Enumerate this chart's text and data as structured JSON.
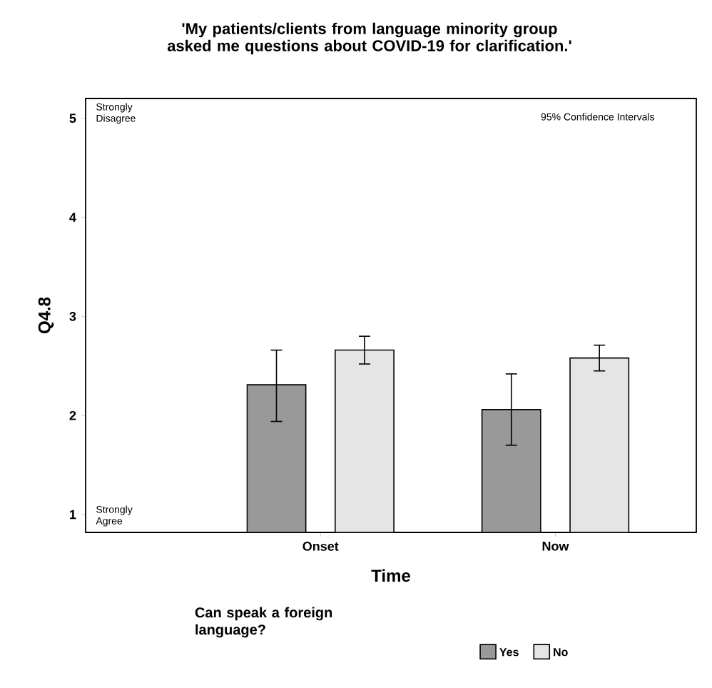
{
  "chart_data": {
    "type": "bar",
    "title": "'My patients/clients from language minority group asked me questions about COVID-19 for clarification.'",
    "xlabel": "Time",
    "ylabel": "Q4.8",
    "legend_title": "Can speak a foreign language?",
    "categories": [
      "Onset",
      "Now"
    ],
    "series": [
      {
        "name": "Yes",
        "color": "#999999",
        "values": [
          2.31,
          2.06
        ],
        "errors": [
          [
            1.94,
            2.66
          ],
          [
            1.7,
            2.42
          ]
        ]
      },
      {
        "name": "No",
        "color": "#e5e5e5",
        "values": [
          2.66,
          2.58
        ],
        "errors": [
          [
            2.52,
            2.8
          ],
          [
            2.45,
            2.71
          ]
        ]
      }
    ],
    "ylim": [
      0.82,
      5.2
    ],
    "yticks": [
      1,
      2,
      3,
      4,
      5
    ],
    "grid": false,
    "legend": "bottom",
    "annotations": [
      "Strongly Disagree",
      "Strongly Agree",
      "95% Confidence Intervals"
    ]
  }
}
